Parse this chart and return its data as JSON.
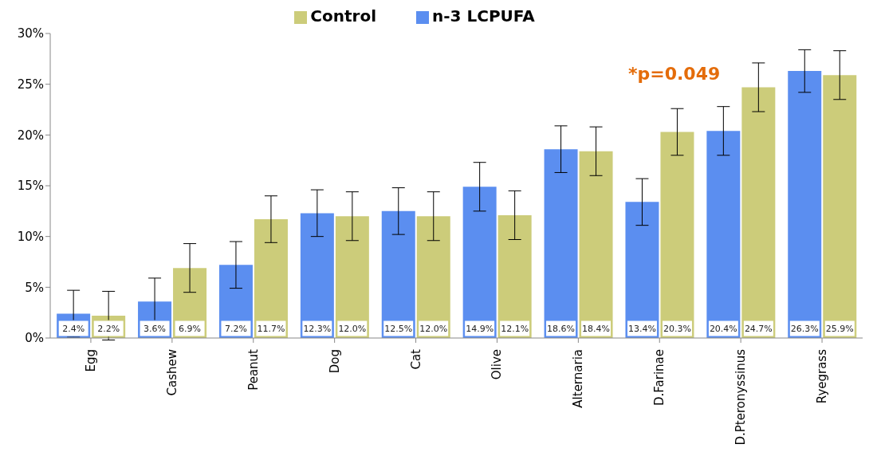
{
  "chart_data": {
    "type": "bar",
    "categories": [
      "Egg",
      "Cashew",
      "Peanut",
      "Dog",
      "Cat",
      "Olive",
      "Alternaria",
      "D.Farinae",
      "D.Pteronyssinus",
      "Ryegrass"
    ],
    "series": [
      {
        "name": "n-3 LCPUFA",
        "color": "#5b8ef0",
        "values": [
          2.4,
          3.6,
          7.2,
          12.3,
          12.5,
          14.9,
          18.6,
          13.4,
          20.4,
          26.3
        ],
        "value_labels": [
          "2.4%",
          "3.6%",
          "7.2%",
          "12.3%",
          "12.5%",
          "14.9%",
          "18.6%",
          "13.4%",
          "20.4%",
          "26.3%"
        ],
        "errors": [
          2.3,
          2.3,
          2.3,
          2.3,
          2.3,
          2.4,
          2.3,
          2.3,
          2.4,
          2.1
        ]
      },
      {
        "name": "Control",
        "color": "#cccc7a",
        "values": [
          2.2,
          6.9,
          11.7,
          12.0,
          12.0,
          12.1,
          18.4,
          20.3,
          24.7,
          25.9
        ],
        "value_labels": [
          "2.2%",
          "6.9%",
          "11.7%",
          "12.0%",
          "12.0%",
          "12.1%",
          "18.4%",
          "20.3%",
          "24.7%",
          "25.9%"
        ],
        "errors": [
          2.4,
          2.4,
          2.3,
          2.4,
          2.4,
          2.4,
          2.4,
          2.3,
          2.4,
          2.4
        ]
      }
    ],
    "ylim": [
      0,
      30
    ],
    "yticks": [
      {
        "value": 0,
        "label": "0%"
      },
      {
        "value": 5,
        "label": "5%"
      },
      {
        "value": 10,
        "label": "10%"
      },
      {
        "value": 15,
        "label": "15%"
      },
      {
        "value": 20,
        "label": "20%"
      },
      {
        "value": 25,
        "label": "25%"
      },
      {
        "value": 30,
        "label": "30%"
      }
    ],
    "grid": false,
    "legend": "top",
    "annotations": [
      "*p=0.049"
    ]
  }
}
